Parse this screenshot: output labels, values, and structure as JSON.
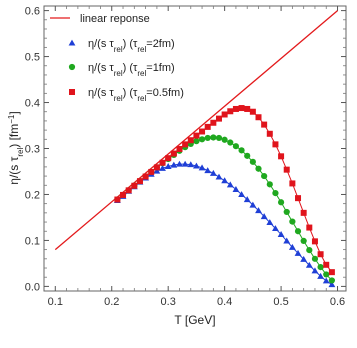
{
  "chart_data": {
    "type": "line",
    "xlabel": "T [GeV]",
    "ylabel_parts": [
      "η/(s τ",
      "rel",
      ") [fm",
      "−1",
      "]"
    ],
    "xlim": [
      0.08,
      0.615
    ],
    "ylim": [
      -0.01,
      0.61
    ],
    "xticks": [
      0.1,
      0.2,
      0.3,
      0.4,
      0.5,
      0.6
    ],
    "xtick_labels": [
      "0.1",
      "0.2",
      "0.3",
      "0.4",
      "0.5",
      "0.6"
    ],
    "yticks": [
      0.0,
      0.1,
      0.2,
      0.3,
      0.4,
      0.5,
      0.6
    ],
    "ytick_labels": [
      "0.0",
      "0.1",
      "0.2",
      "0.3",
      "0.4",
      "0.5",
      "0.6"
    ],
    "grid": false,
    "legend_position": "top-left",
    "linear_line": {
      "name": "linear reponse",
      "color": "#e31a1c",
      "x": [
        0.1,
        0.6
      ],
      "y": [
        0.08,
        0.6
      ]
    },
    "series": [
      {
        "legend_parts": [
          "η/(s τ",
          "rel",
          ")  (τ",
          "rel",
          "=2fm)"
        ],
        "color": "#1f3fd6",
        "marker": "triangle",
        "peak_T": 0.33,
        "x": [
          0.21,
          0.22,
          0.23,
          0.24,
          0.25,
          0.26,
          0.27,
          0.28,
          0.29,
          0.3,
          0.31,
          0.32,
          0.33,
          0.34,
          0.35,
          0.36,
          0.37,
          0.38,
          0.39,
          0.4,
          0.41,
          0.42,
          0.43,
          0.44,
          0.45,
          0.46,
          0.47,
          0.48,
          0.49,
          0.5,
          0.51,
          0.52,
          0.53,
          0.54,
          0.55,
          0.56,
          0.57,
          0.58,
          0.59
        ],
        "y": [
          0.187,
          0.196,
          0.207,
          0.217,
          0.227,
          0.236,
          0.244,
          0.251,
          0.257,
          0.261,
          0.264,
          0.266,
          0.266,
          0.265,
          0.262,
          0.258,
          0.252,
          0.246,
          0.238,
          0.23,
          0.221,
          0.211,
          0.2,
          0.189,
          0.177,
          0.165,
          0.152,
          0.139,
          0.126,
          0.113,
          0.099,
          0.085,
          0.072,
          0.059,
          0.046,
          0.034,
          0.022,
          0.012,
          0.004
        ]
      },
      {
        "legend_parts": [
          "η/(s τ",
          "rel",
          ")  (τ",
          "rel",
          "=1fm)"
        ],
        "color": "#1fa81f",
        "marker": "circle",
        "peak_T": 0.38,
        "x": [
          0.21,
          0.22,
          0.23,
          0.24,
          0.25,
          0.26,
          0.27,
          0.28,
          0.29,
          0.3,
          0.31,
          0.32,
          0.33,
          0.34,
          0.35,
          0.36,
          0.37,
          0.38,
          0.39,
          0.4,
          0.41,
          0.42,
          0.43,
          0.44,
          0.45,
          0.46,
          0.47,
          0.48,
          0.49,
          0.5,
          0.51,
          0.52,
          0.53,
          0.54,
          0.55,
          0.56,
          0.57,
          0.58,
          0.59
        ],
        "y": [
          0.189,
          0.199,
          0.209,
          0.219,
          0.229,
          0.239,
          0.249,
          0.259,
          0.268,
          0.277,
          0.286,
          0.295,
          0.303,
          0.31,
          0.316,
          0.32,
          0.323,
          0.324,
          0.323,
          0.319,
          0.313,
          0.305,
          0.296,
          0.284,
          0.271,
          0.256,
          0.24,
          0.222,
          0.203,
          0.183,
          0.162,
          0.141,
          0.12,
          0.099,
          0.079,
          0.06,
          0.042,
          0.026,
          0.013
        ]
      },
      {
        "legend_parts": [
          "η/(s τ",
          "rel",
          ")  (τ",
          "rel",
          "=0.5fm)"
        ],
        "color": "#e0141c",
        "marker": "square",
        "peak_T": 0.43,
        "x": [
          0.21,
          0.22,
          0.23,
          0.24,
          0.25,
          0.26,
          0.27,
          0.28,
          0.29,
          0.3,
          0.31,
          0.32,
          0.33,
          0.34,
          0.35,
          0.36,
          0.37,
          0.38,
          0.39,
          0.4,
          0.41,
          0.42,
          0.43,
          0.44,
          0.45,
          0.46,
          0.47,
          0.48,
          0.49,
          0.5,
          0.51,
          0.52,
          0.53,
          0.54,
          0.55,
          0.56,
          0.57,
          0.58,
          0.59
        ],
        "y": [
          0.189,
          0.199,
          0.209,
          0.219,
          0.229,
          0.239,
          0.249,
          0.259,
          0.269,
          0.279,
          0.289,
          0.299,
          0.309,
          0.318,
          0.328,
          0.337,
          0.347,
          0.356,
          0.365,
          0.374,
          0.381,
          0.386,
          0.388,
          0.386,
          0.38,
          0.368,
          0.352,
          0.332,
          0.309,
          0.283,
          0.254,
          0.224,
          0.192,
          0.16,
          0.128,
          0.098,
          0.07,
          0.047,
          0.031
        ]
      }
    ]
  }
}
